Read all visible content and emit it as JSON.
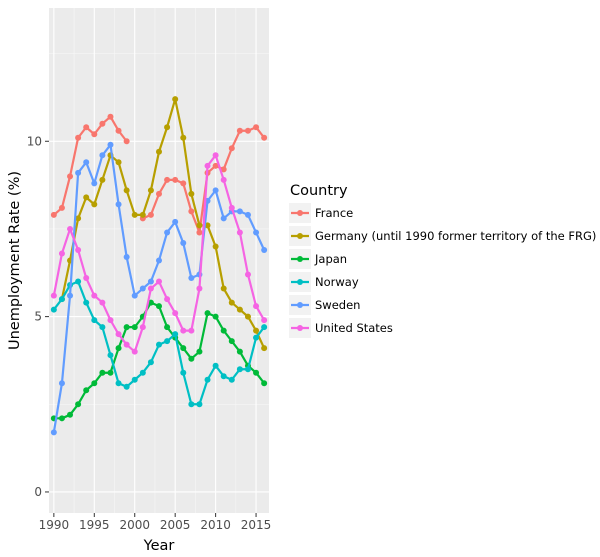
{
  "chart_data": {
    "type": "line",
    "title": "",
    "xlabel": "Year",
    "ylabel": "Unemployment Rate (%)",
    "xlim": [
      1989.4,
      2016.6
    ],
    "ylim": [
      -0.6,
      13.8
    ],
    "xticks": [
      1990,
      1995,
      2000,
      2005,
      2010,
      2015
    ],
    "yticks": [
      0,
      5,
      10
    ],
    "grid": true,
    "legend_title": "Country",
    "legend_position": "right",
    "x": [
      1990,
      1991,
      1992,
      1993,
      1994,
      1995,
      1996,
      1997,
      1998,
      1999,
      2000,
      2001,
      2002,
      2003,
      2004,
      2005,
      2006,
      2007,
      2008,
      2009,
      2010,
      2011,
      2012,
      2013,
      2014,
      2015,
      2016
    ],
    "series": [
      {
        "name": "France",
        "color": "#F8766D",
        "values": [
          7.9,
          8.1,
          9.0,
          10.1,
          10.4,
          10.2,
          10.5,
          10.7,
          10.3,
          10.0,
          null,
          7.8,
          7.9,
          8.5,
          8.9,
          8.9,
          8.8,
          8.0,
          7.4,
          9.1,
          9.3,
          9.2,
          9.8,
          10.3,
          10.3,
          10.4,
          10.1
        ]
      },
      {
        "name": "Germany (until 1990 former territory of the FRG)",
        "color": "#B79F00",
        "values": [
          null,
          5.5,
          6.6,
          7.8,
          8.4,
          8.2,
          8.9,
          9.6,
          9.4,
          8.6,
          7.9,
          7.9,
          8.6,
          9.7,
          10.4,
          11.2,
          10.1,
          8.5,
          7.6,
          7.6,
          7.0,
          5.8,
          5.4,
          5.2,
          5.0,
          4.6,
          4.1
        ]
      },
      {
        "name": "Japan",
        "color": "#00BA38",
        "values": [
          2.1,
          2.1,
          2.2,
          2.5,
          2.9,
          3.1,
          3.4,
          3.4,
          4.1,
          4.7,
          4.7,
          5.0,
          5.4,
          5.3,
          4.7,
          4.4,
          4.1,
          3.8,
          4.0,
          5.1,
          5.0,
          4.6,
          4.3,
          4.0,
          3.6,
          3.4,
          3.1
        ]
      },
      {
        "name": "Norway",
        "color": "#00BFC4",
        "values": [
          5.2,
          5.5,
          5.9,
          6.0,
          5.4,
          4.9,
          4.7,
          3.9,
          3.1,
          3.0,
          3.2,
          3.4,
          3.7,
          4.2,
          4.3,
          4.5,
          3.4,
          2.5,
          2.5,
          3.2,
          3.6,
          3.3,
          3.2,
          3.5,
          3.5,
          4.4,
          4.7
        ]
      },
      {
        "name": "Sweden",
        "color": "#619CFF",
        "values": [
          1.7,
          3.1,
          5.6,
          9.1,
          9.4,
          8.8,
          9.6,
          9.9,
          8.2,
          6.7,
          5.6,
          5.8,
          6.0,
          6.6,
          7.4,
          7.7,
          7.1,
          6.1,
          6.2,
          8.3,
          8.6,
          7.8,
          8.0,
          8.0,
          7.9,
          7.4,
          6.9
        ]
      },
      {
        "name": "United States",
        "color": "#F564E3",
        "values": [
          5.6,
          6.8,
          7.5,
          6.9,
          6.1,
          5.6,
          5.4,
          4.9,
          4.5,
          4.2,
          4.0,
          4.7,
          5.8,
          6.0,
          5.5,
          5.1,
          4.6,
          4.6,
          5.8,
          9.3,
          9.6,
          8.9,
          8.1,
          7.4,
          6.2,
          5.3,
          4.9
        ]
      }
    ]
  }
}
